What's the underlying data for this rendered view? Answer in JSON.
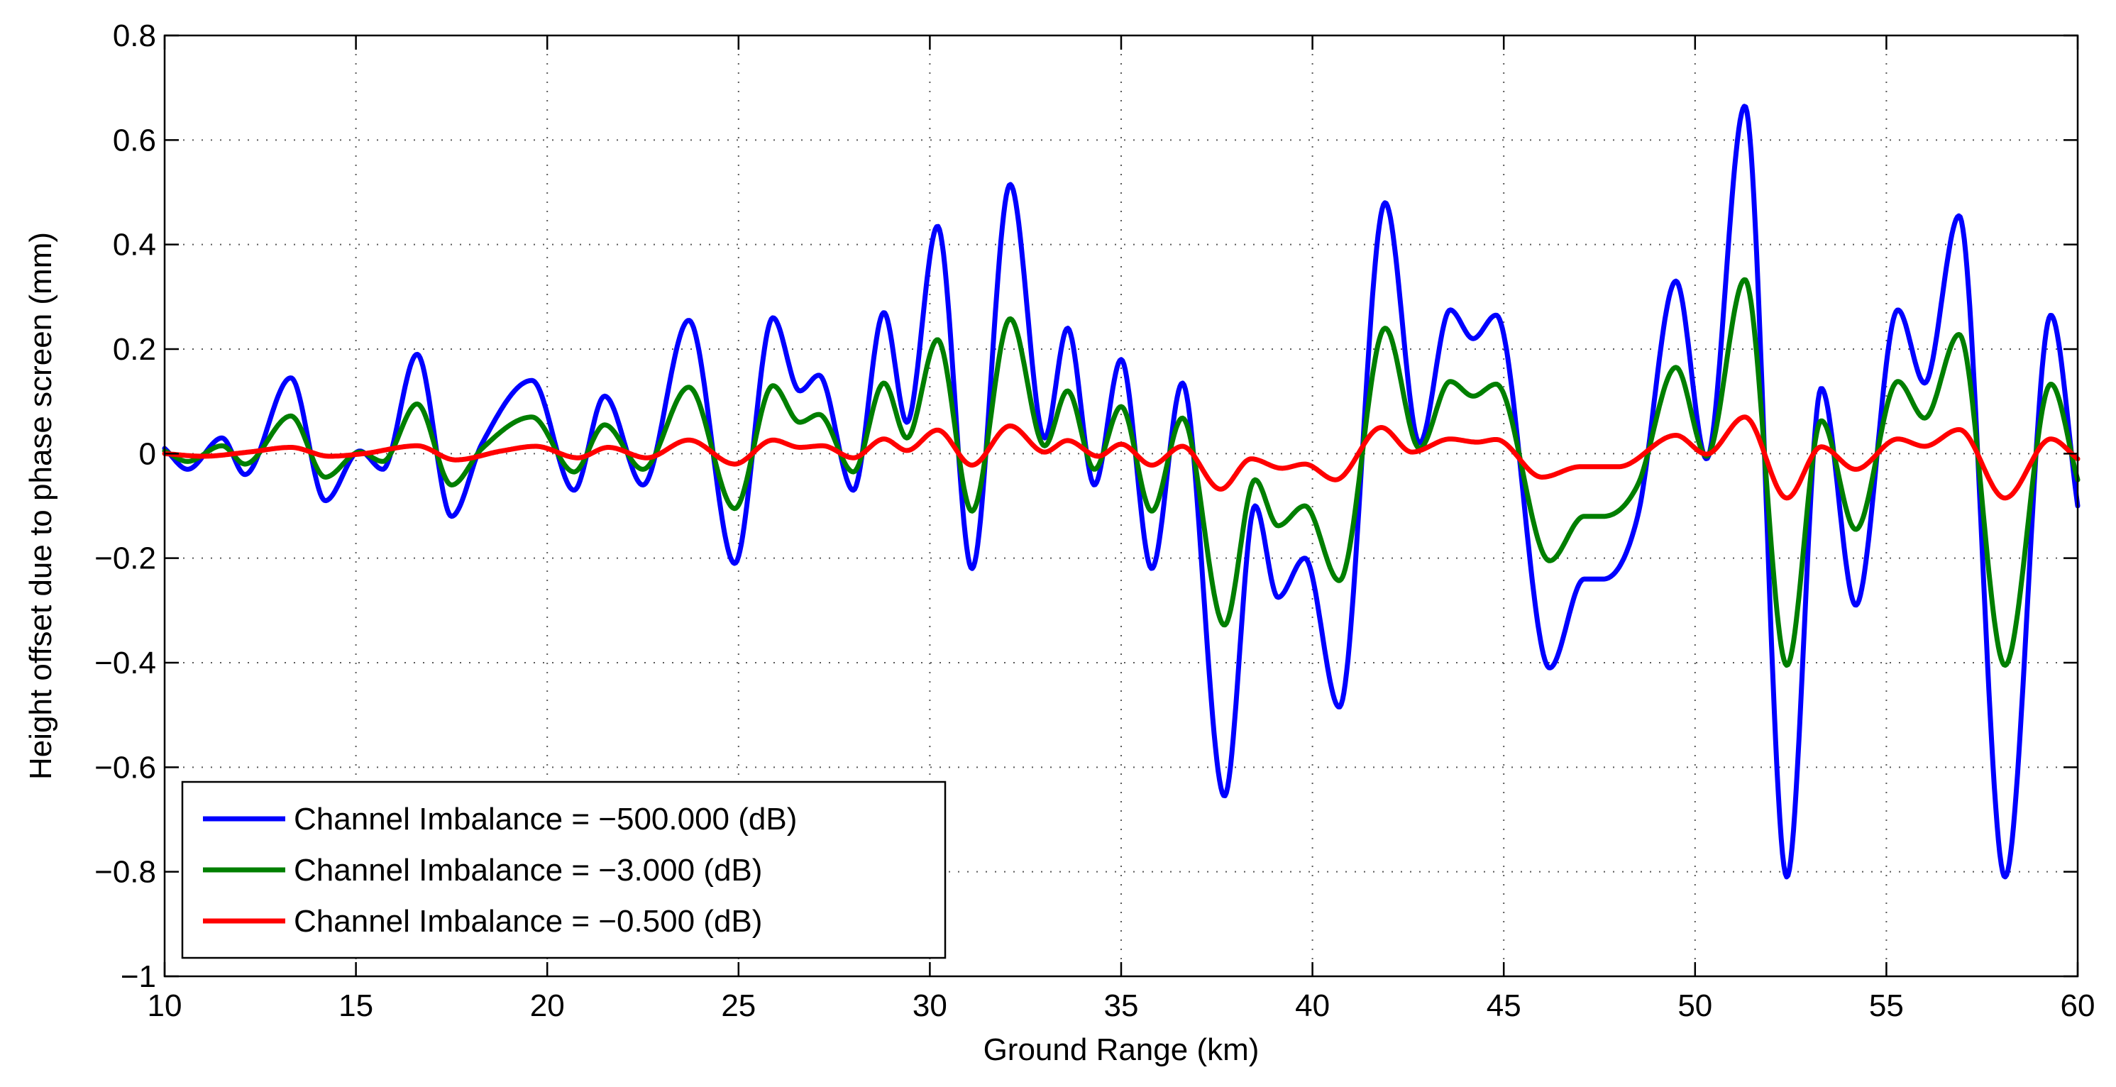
{
  "chart_data": {
    "type": "line",
    "title": "",
    "xlabel": "Ground Range (km)",
    "ylabel": "Height offset due to phase screen (mm)",
    "xlim": [
      10,
      60
    ],
    "ylim": [
      -1,
      0.8
    ],
    "xticks": [
      10,
      15,
      20,
      25,
      30,
      35,
      40,
      45,
      50,
      55,
      60
    ],
    "yticks": [
      -1,
      -0.8,
      -0.6,
      -0.4,
      -0.2,
      0,
      0.2,
      0.4,
      0.6,
      0.8
    ],
    "xtick_labels": [
      "10",
      "15",
      "20",
      "25",
      "30",
      "35",
      "40",
      "45",
      "50",
      "55",
      "60"
    ],
    "ytick_labels": [
      "−1",
      "−0.8",
      "−0.6",
      "−0.4",
      "−0.2",
      "0",
      "0.2",
      "0.4",
      "0.6",
      "0.8"
    ],
    "grid": true,
    "legend_position": "bottom-left",
    "series": [
      {
        "name": "Channel Imbalance = −500.000 (dB)",
        "color": "#0000ff",
        "x": [
          10,
          10.6,
          11.5,
          12.1,
          13.3,
          14.2,
          15.1,
          15.7,
          16.6,
          17.5,
          18.3,
          19.6,
          20.7,
          21.5,
          22.5,
          23.7,
          24.9,
          25.9,
          26.6,
          27.1,
          28.0,
          28.8,
          29.4,
          30.2,
          31.1,
          32.1,
          33.0,
          33.6,
          34.3,
          35.0,
          35.8,
          36.6,
          37.7,
          38.5,
          39.1,
          39.8,
          40.7,
          41.9,
          42.8,
          43.6,
          44.2,
          44.8,
          46.2,
          47.1,
          47.6,
          48.5,
          49.5,
          50.3,
          51.3,
          52.4,
          53.3,
          54.2,
          55.3,
          56.0,
          56.9,
          58.1,
          59.3,
          60
        ],
        "y": [
          0.01,
          -0.03,
          0.03,
          -0.04,
          0.145,
          -0.09,
          0.005,
          -0.03,
          0.19,
          -0.12,
          0.02,
          0.14,
          -0.07,
          0.11,
          -0.06,
          0.255,
          -0.21,
          0.26,
          0.12,
          0.15,
          -0.07,
          0.27,
          0.06,
          0.435,
          -0.22,
          0.515,
          0.03,
          0.24,
          -0.06,
          0.18,
          -0.22,
          0.135,
          -0.655,
          -0.1,
          -0.275,
          -0.2,
          -0.485,
          0.48,
          0.02,
          0.275,
          0.22,
          0.265,
          -0.41,
          -0.24,
          -0.24,
          -0.12,
          0.33,
          -0.01,
          0.665,
          -0.81,
          0.125,
          -0.29,
          0.275,
          0.135,
          0.455,
          -0.81,
          0.265,
          -0.1
        ]
      },
      {
        "name": "Channel Imbalance = −3.000 (dB)",
        "color": "#007f00",
        "x": [
          10,
          10.6,
          11.5,
          12.1,
          13.3,
          14.2,
          15.1,
          15.7,
          16.6,
          17.5,
          18.3,
          19.6,
          20.7,
          21.5,
          22.5,
          23.7,
          24.9,
          25.9,
          26.6,
          27.1,
          28.0,
          28.8,
          29.4,
          30.2,
          31.1,
          32.1,
          33.0,
          33.6,
          34.3,
          35.0,
          35.8,
          36.6,
          37.7,
          38.5,
          39.1,
          39.8,
          40.7,
          41.9,
          42.8,
          43.6,
          44.2,
          44.8,
          46.2,
          47.1,
          47.6,
          48.5,
          49.5,
          50.3,
          51.3,
          52.4,
          53.3,
          54.2,
          55.3,
          56.0,
          56.9,
          58.1,
          59.3,
          60
        ],
        "y": [
          0.005,
          -0.015,
          0.015,
          -0.02,
          0.072,
          -0.045,
          0.003,
          -0.015,
          0.095,
          -0.06,
          0.01,
          0.07,
          -0.035,
          0.055,
          -0.03,
          0.127,
          -0.105,
          0.13,
          0.06,
          0.075,
          -0.035,
          0.135,
          0.03,
          0.218,
          -0.11,
          0.258,
          0.015,
          0.12,
          -0.03,
          0.09,
          -0.11,
          0.068,
          -0.328,
          -0.05,
          -0.138,
          -0.1,
          -0.243,
          0.24,
          0.01,
          0.138,
          0.11,
          0.133,
          -0.205,
          -0.12,
          -0.12,
          -0.06,
          0.165,
          -0.005,
          0.333,
          -0.405,
          0.063,
          -0.145,
          0.138,
          0.068,
          0.228,
          -0.405,
          0.133,
          -0.05
        ]
      },
      {
        "name": "Channel Imbalance = −0.500 (dB)",
        "color": "#ff0000",
        "x": [
          10,
          11.0,
          12.2,
          13.3,
          14.3,
          15.2,
          16.6,
          17.6,
          18.8,
          19.7,
          20.8,
          21.6,
          22.6,
          23.7,
          24.9,
          25.9,
          26.6,
          27.2,
          28.0,
          28.8,
          29.4,
          30.2,
          31.1,
          32.1,
          33.0,
          33.6,
          34.4,
          35.0,
          35.8,
          36.6,
          37.6,
          38.4,
          39.2,
          39.8,
          40.6,
          41.8,
          42.6,
          43.6,
          44.3,
          44.8,
          46.0,
          47.0,
          48.0,
          49.5,
          50.3,
          51.3,
          52.4,
          53.3,
          54.2,
          55.3,
          56.0,
          56.9,
          58.1,
          59.3,
          60
        ],
        "y": [
          0.0,
          -0.005,
          0.003,
          0.012,
          -0.005,
          0.0,
          0.015,
          -0.012,
          0.005,
          0.014,
          -0.008,
          0.012,
          -0.008,
          0.026,
          -0.02,
          0.026,
          0.012,
          0.015,
          -0.008,
          0.028,
          0.006,
          0.045,
          -0.022,
          0.053,
          0.003,
          0.025,
          -0.005,
          0.018,
          -0.022,
          0.014,
          -0.068,
          -0.01,
          -0.028,
          -0.02,
          -0.05,
          0.05,
          0.003,
          0.028,
          0.022,
          0.027,
          -0.045,
          -0.025,
          -0.025,
          0.035,
          -0.001,
          0.07,
          -0.085,
          0.013,
          -0.03,
          0.028,
          0.014,
          0.046,
          -0.085,
          0.028,
          -0.01
        ]
      }
    ]
  }
}
